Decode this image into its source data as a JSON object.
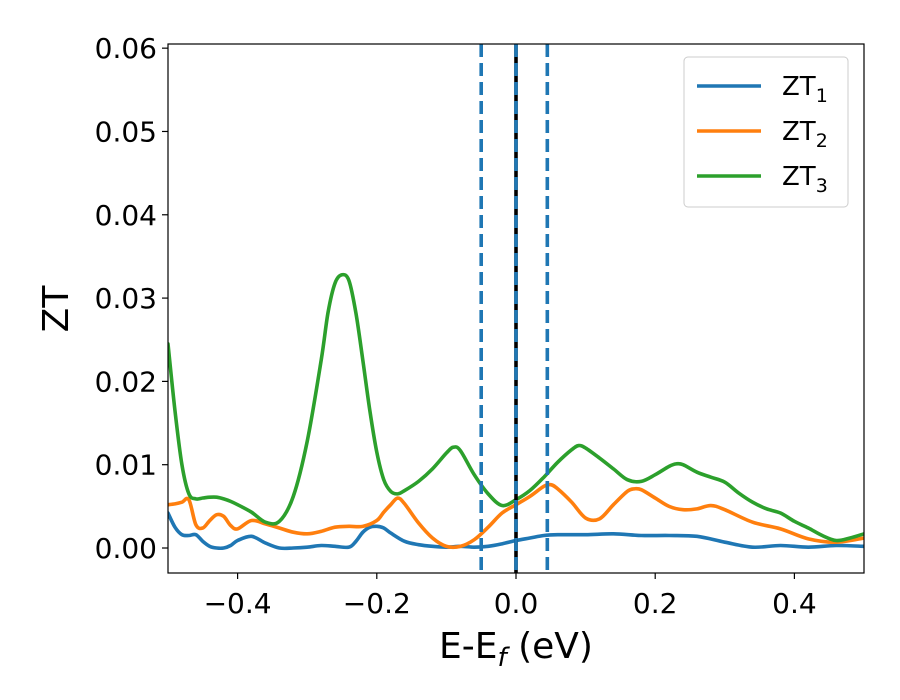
{
  "chart_data": {
    "type": "line",
    "title": "",
    "xlabel": "E-E",
    "xlabel_sub": "f",
    "xlabel_unit": " (eV)",
    "ylabel": "ZT",
    "xlim": [
      -0.5,
      0.5
    ],
    "ylim": [
      -0.003,
      0.0605
    ],
    "xticks": [
      -0.4,
      -0.2,
      0.0,
      0.2,
      0.4
    ],
    "xtick_labels": [
      "−0.4",
      "−0.2",
      "0.0",
      "0.2",
      "0.4"
    ],
    "yticks": [
      0.0,
      0.01,
      0.02,
      0.03,
      0.04,
      0.05,
      0.06
    ],
    "ytick_labels": [
      "0.00",
      "0.01",
      "0.02",
      "0.03",
      "0.04",
      "0.05",
      "0.06"
    ],
    "grid": false,
    "legend_position": "top-right",
    "vlines": [
      {
        "x": -0.05,
        "style": "dashed",
        "color": "#1f77b4"
      },
      {
        "x": 0.0,
        "style": "solid",
        "color": "#000000"
      },
      {
        "x": 0.0,
        "style": "dashed",
        "color": "#1f77b4"
      },
      {
        "x": 0.045,
        "style": "dashed",
        "color": "#1f77b4"
      }
    ],
    "series": [
      {
        "name": "ZT",
        "name_sub": "1",
        "color": "#1f77b4",
        "x": [
          -0.5,
          -0.49,
          -0.48,
          -0.47,
          -0.46,
          -0.45,
          -0.44,
          -0.43,
          -0.42,
          -0.41,
          -0.4,
          -0.38,
          -0.36,
          -0.34,
          -0.32,
          -0.3,
          -0.28,
          -0.26,
          -0.24,
          -0.23,
          -0.22,
          -0.21,
          -0.2,
          -0.19,
          -0.18,
          -0.16,
          -0.14,
          -0.12,
          -0.1,
          -0.08,
          -0.06,
          -0.04,
          -0.02,
          0.0,
          0.02,
          0.04,
          0.06,
          0.1,
          0.14,
          0.18,
          0.22,
          0.26,
          0.3,
          0.34,
          0.38,
          0.42,
          0.46,
          0.5
        ],
        "y": [
          0.0042,
          0.0025,
          0.0016,
          0.0015,
          0.0016,
          0.0008,
          0.0002,
          0.0,
          0.0,
          0.0003,
          0.0009,
          0.0014,
          0.0006,
          0.0,
          0.0,
          0.0001,
          0.0003,
          0.0002,
          0.0001,
          0.0008,
          0.0019,
          0.0025,
          0.0026,
          0.0024,
          0.0018,
          0.0008,
          0.0004,
          0.0002,
          0.0001,
          0.0002,
          0.0001,
          0.0002,
          0.0005,
          0.0009,
          0.0012,
          0.0015,
          0.0016,
          0.0016,
          0.0017,
          0.0015,
          0.0015,
          0.0014,
          0.0007,
          0.0001,
          0.0003,
          0.0001,
          0.0003,
          0.0002
        ]
      },
      {
        "name": "ZT",
        "name_sub": "2",
        "color": "#ff7f0e",
        "x": [
          -0.5,
          -0.49,
          -0.48,
          -0.47,
          -0.46,
          -0.45,
          -0.44,
          -0.43,
          -0.42,
          -0.41,
          -0.4,
          -0.38,
          -0.36,
          -0.34,
          -0.32,
          -0.3,
          -0.28,
          -0.26,
          -0.24,
          -0.22,
          -0.2,
          -0.19,
          -0.18,
          -0.17,
          -0.16,
          -0.14,
          -0.12,
          -0.1,
          -0.08,
          -0.06,
          -0.04,
          -0.02,
          0.0,
          0.02,
          0.04,
          0.05,
          0.06,
          0.08,
          0.1,
          0.12,
          0.14,
          0.16,
          0.17,
          0.18,
          0.2,
          0.22,
          0.24,
          0.26,
          0.28,
          0.3,
          0.34,
          0.38,
          0.42,
          0.46,
          0.5
        ],
        "y": [
          0.0052,
          0.0053,
          0.0055,
          0.0058,
          0.0028,
          0.0024,
          0.0033,
          0.004,
          0.0038,
          0.0027,
          0.0023,
          0.0033,
          0.0029,
          0.0024,
          0.0019,
          0.0017,
          0.002,
          0.0025,
          0.0026,
          0.0026,
          0.0033,
          0.0043,
          0.0052,
          0.006,
          0.0053,
          0.003,
          0.0012,
          0.0002,
          0.0002,
          0.001,
          0.0025,
          0.0042,
          0.0052,
          0.0062,
          0.0074,
          0.0076,
          0.0071,
          0.0055,
          0.0036,
          0.0035,
          0.0052,
          0.0068,
          0.0071,
          0.007,
          0.006,
          0.005,
          0.0046,
          0.0047,
          0.0051,
          0.0046,
          0.0031,
          0.0023,
          0.0011,
          0.0007,
          0.0012
        ]
      },
      {
        "name": "ZT",
        "name_sub": "3",
        "color": "#2ca02c",
        "x": [
          -0.5,
          -0.49,
          -0.48,
          -0.47,
          -0.46,
          -0.45,
          -0.44,
          -0.43,
          -0.42,
          -0.41,
          -0.4,
          -0.38,
          -0.36,
          -0.34,
          -0.32,
          -0.3,
          -0.28,
          -0.27,
          -0.26,
          -0.25,
          -0.24,
          -0.23,
          -0.22,
          -0.21,
          -0.2,
          -0.19,
          -0.18,
          -0.17,
          -0.16,
          -0.14,
          -0.12,
          -0.1,
          -0.09,
          -0.08,
          -0.06,
          -0.04,
          -0.02,
          0.0,
          0.02,
          0.04,
          0.06,
          0.08,
          0.09,
          0.1,
          0.12,
          0.14,
          0.16,
          0.18,
          0.2,
          0.22,
          0.23,
          0.24,
          0.26,
          0.28,
          0.3,
          0.32,
          0.34,
          0.36,
          0.38,
          0.4,
          0.42,
          0.44,
          0.46,
          0.48,
          0.5
        ],
        "y": [
          0.0245,
          0.0165,
          0.01,
          0.0065,
          0.0059,
          0.006,
          0.0061,
          0.0061,
          0.0059,
          0.0056,
          0.0052,
          0.0043,
          0.0031,
          0.0032,
          0.0062,
          0.0128,
          0.0225,
          0.0283,
          0.0318,
          0.0328,
          0.0321,
          0.0282,
          0.0225,
          0.0165,
          0.0115,
          0.0082,
          0.0068,
          0.0065,
          0.0069,
          0.008,
          0.0095,
          0.0114,
          0.0121,
          0.0117,
          0.0088,
          0.0065,
          0.0051,
          0.0058,
          0.0069,
          0.0085,
          0.0103,
          0.0118,
          0.0123,
          0.012,
          0.0108,
          0.0095,
          0.0082,
          0.008,
          0.0088,
          0.0098,
          0.0101,
          0.01,
          0.0091,
          0.0085,
          0.0079,
          0.0066,
          0.0055,
          0.0047,
          0.0042,
          0.0032,
          0.0024,
          0.0015,
          0.0009,
          0.0012,
          0.0017
        ]
      }
    ]
  }
}
